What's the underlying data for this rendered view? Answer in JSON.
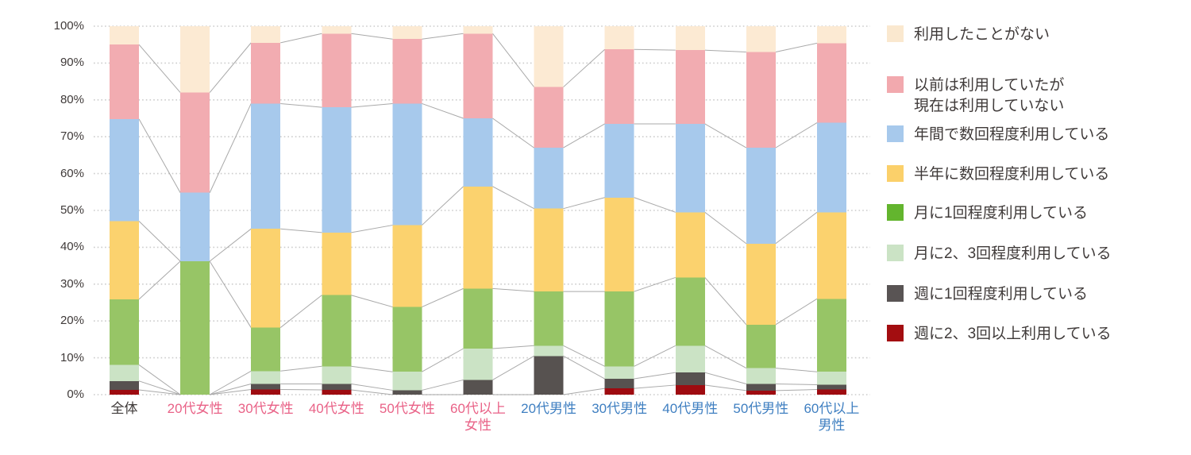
{
  "chart_data": {
    "type": "bar",
    "subtype": "stacked-100-percent-column",
    "title": "",
    "xlabel": "",
    "ylabel": "",
    "ylim": [
      0,
      100
    ],
    "grid": "horizontal-dotted",
    "legend_position": "right",
    "series_connector_lines": true,
    "y_ticks": [
      "100%",
      "90%",
      "80%",
      "70%",
      "60%",
      "50%",
      "40%",
      "30%",
      "20%",
      "10%",
      "0%"
    ],
    "categories": [
      {
        "label": "全体",
        "lines": [
          "全体"
        ],
        "label_color": "#3f3a39"
      },
      {
        "label": "20代女性",
        "lines": [
          "20代女性"
        ],
        "label_color": "#e96287"
      },
      {
        "label": "30代女性",
        "lines": [
          "30代女性"
        ],
        "label_color": "#e96287"
      },
      {
        "label": "40代女性",
        "lines": [
          "40代女性"
        ],
        "label_color": "#e96287"
      },
      {
        "label": "50代女性",
        "lines": [
          "50代女性"
        ],
        "label_color": "#e96287"
      },
      {
        "label": "60代以上女性",
        "lines": [
          "60代以上",
          "女性"
        ],
        "label_color": "#e96287"
      },
      {
        "label": "20代男性",
        "lines": [
          "20代男性"
        ],
        "label_color": "#3f7fc1"
      },
      {
        "label": "30代男性",
        "lines": [
          "30代男性"
        ],
        "label_color": "#3f7fc1"
      },
      {
        "label": "40代男性",
        "lines": [
          "40代男性"
        ],
        "label_color": "#3f7fc1"
      },
      {
        "label": "50代男性",
        "lines": [
          "50代男性"
        ],
        "label_color": "#3f7fc1"
      },
      {
        "label": "60代以上男性",
        "lines": [
          "60代以上",
          "男性"
        ],
        "label_color": "#3f7fc1"
      }
    ],
    "series": [
      {
        "name": "週に2、3回以上利用している",
        "legend_lines": [
          "週に2、3回以上利用している"
        ],
        "color": "#9e0b10",
        "legend_color": "#a30d10",
        "values": [
          1.3,
          0,
          1.4,
          1.3,
          0,
          0,
          0,
          1.7,
          2.6,
          1.1,
          1.4
        ]
      },
      {
        "name": "週に1回程度利用している",
        "legend_lines": [
          "週に1回程度利用している"
        ],
        "color": "#575250",
        "legend_color": "#595454",
        "values": [
          2.4,
          0,
          1.5,
          1.6,
          1.2,
          4.0,
          10.5,
          2.6,
          3.4,
          1.8,
          1.3
        ]
      },
      {
        "name": "月に2、3回程度利用している",
        "legend_lines": [
          "月に2、3回程度利用している"
        ],
        "color": "#cbe3c5",
        "legend_color": "#cbe3c5",
        "values": [
          4.4,
          0,
          3.5,
          4.8,
          5.0,
          8.5,
          2.8,
          3.4,
          7.3,
          4.3,
          3.5
        ]
      },
      {
        "name": "月に1回程度利用している",
        "legend_lines": [
          "月に1回程度利用している"
        ],
        "color": "#97c566",
        "legend_color": "#63b52e",
        "values": [
          17.8,
          36.2,
          11.8,
          19.3,
          17.6,
          16.3,
          14.7,
          20.3,
          18.5,
          11.8,
          19.8
        ]
      },
      {
        "name": "半年に数回程度利用している",
        "legend_lines": [
          "半年に数回程度利用している"
        ],
        "color": "#fbd26e",
        "legend_color": "#fbd06a",
        "values": [
          21.2,
          0,
          26.8,
          17.0,
          22.2,
          27.7,
          22.5,
          25.5,
          17.7,
          22.0,
          23.5
        ]
      },
      {
        "name": "年間で数回程度利用している",
        "legend_lines": [
          "年間で数回程度利用している"
        ],
        "color": "#a7c9ec",
        "legend_color": "#a7c9ec",
        "values": [
          27.7,
          18.6,
          34.0,
          34.0,
          33.0,
          18.5,
          16.5,
          20.0,
          24.0,
          26.0,
          24.3
        ]
      },
      {
        "name": "以前は利用していたが現在は利用していない",
        "legend_lines": [
          "以前は利用していたが",
          "現在は利用していない"
        ],
        "color": "#f2acb1",
        "legend_color": "#f2a9ae",
        "values": [
          20.2,
          27.2,
          16.5,
          20.0,
          17.5,
          23.0,
          16.5,
          20.2,
          20.0,
          26.0,
          21.6
        ]
      },
      {
        "name": "利用したことがない",
        "legend_lines": [
          "利用したことがない"
        ],
        "color": "#fcead3",
        "legend_color": "#fae8cf",
        "values": [
          5.0,
          18.0,
          4.5,
          2.0,
          3.5,
          2.0,
          16.5,
          6.3,
          6.5,
          7.0,
          4.6
        ]
      }
    ]
  },
  "style_colors": {
    "gridline": "#cccccc",
    "connector_line": "#a9a9a9",
    "axis_text": "#3f3a39",
    "background": "#ffffff"
  }
}
